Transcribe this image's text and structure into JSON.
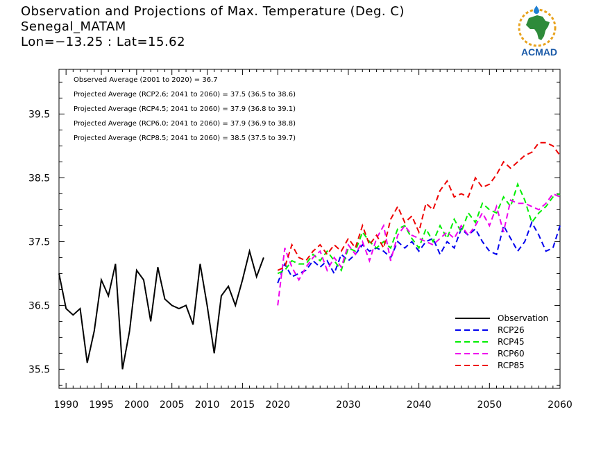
{
  "title": {
    "line1": "Observation and Projections of Max. Temperature (Deg. C)",
    "line2": "Senegal_MATAM",
    "line3": "Lon=−13.25 : Lat=15.62"
  },
  "logo": {
    "text": "ACMAD",
    "colors": {
      "africa": "#2e8b3a",
      "ring": "#e8a21c",
      "drop": "#1f7fd1",
      "text": "#1a5aa8"
    }
  },
  "chart_data": {
    "type": "line",
    "xlim": [
      1989,
      2060
    ],
    "ylim": [
      35.2,
      40.2
    ],
    "x_ticks": [
      1990,
      1995,
      2000,
      2005,
      2010,
      2015,
      2020,
      2030,
      2040,
      2050,
      2060
    ],
    "y_ticks": [
      35.5,
      36.5,
      37.5,
      38.5,
      39.5
    ],
    "annotations": [
      "Observed Average (2001 to 2020) = 36.7",
      "Projected Average (RCP2.6; 2041 to 2060) = 37.5 (36.5 to 38.6)",
      "Projected Average (RCP4.5; 2041 to 2060) = 37.9 (36.8 to 39.1)",
      "Projected Average (RCP6.0; 2041 to 2060) = 37.9 (36.9 to 38.8)",
      "Projected Average (RCP8.5; 2041 to 2060) = 38.5 (37.5 to 39.7)"
    ],
    "legend_position": "bottom-right",
    "series": [
      {
        "name": "Observation",
        "color": "#000000",
        "dash": "",
        "x": [
          1989,
          1990,
          1991,
          1992,
          1993,
          1994,
          1995,
          1996,
          1997,
          1998,
          1999,
          2000,
          2001,
          2002,
          2003,
          2004,
          2005,
          2006,
          2007,
          2008,
          2009,
          2010,
          2011,
          2012,
          2013,
          2014,
          2015,
          2016,
          2017,
          2018,
          2019,
          2020
        ],
        "y": [
          37.0,
          36.45,
          36.35,
          36.45,
          35.6,
          36.1,
          36.9,
          36.65,
          37.15,
          35.5,
          36.1,
          37.05,
          36.9,
          36.25,
          37.1,
          36.6,
          36.5,
          36.45,
          36.5,
          36.2,
          37.15,
          36.5,
          35.75,
          36.65,
          36.8,
          36.5,
          36.9,
          37.35,
          36.95,
          37.25,
          null,
          null
        ]
      },
      {
        "name": "RCP26",
        "color": "#0000ee",
        "dash": "8,5",
        "x": [
          2020,
          2021,
          2022,
          2023,
          2024,
          2025,
          2026,
          2027,
          2028,
          2029,
          2030,
          2031,
          2032,
          2033,
          2034,
          2035,
          2036,
          2037,
          2038,
          2039,
          2040,
          2041,
          2042,
          2043,
          2044,
          2045,
          2046,
          2047,
          2048,
          2049,
          2050,
          2051,
          2052,
          2053,
          2054,
          2055,
          2056,
          2057,
          2058,
          2059,
          2060
        ],
        "y": [
          36.85,
          37.15,
          36.95,
          37.0,
          37.05,
          37.2,
          37.1,
          37.2,
          37.0,
          37.3,
          37.2,
          37.3,
          37.45,
          37.35,
          37.4,
          37.35,
          37.25,
          37.5,
          37.4,
          37.5,
          37.35,
          37.5,
          37.55,
          37.3,
          37.5,
          37.4,
          37.7,
          37.6,
          37.7,
          37.5,
          37.35,
          37.3,
          37.75,
          37.55,
          37.35,
          37.5,
          37.8,
          37.6,
          37.35,
          37.4,
          37.75
        ]
      },
      {
        "name": "RCP45",
        "color": "#00ee00",
        "dash": "8,5",
        "x": [
          2020,
          2021,
          2022,
          2023,
          2024,
          2025,
          2026,
          2027,
          2028,
          2029,
          2030,
          2031,
          2032,
          2033,
          2034,
          2035,
          2036,
          2037,
          2038,
          2039,
          2040,
          2041,
          2042,
          2043,
          2044,
          2045,
          2046,
          2047,
          2048,
          2049,
          2050,
          2051,
          2052,
          2053,
          2054,
          2055,
          2056,
          2057,
          2058,
          2059,
          2060
        ],
        "y": [
          37.0,
          37.05,
          37.2,
          37.15,
          37.15,
          37.3,
          37.2,
          37.35,
          37.2,
          37.05,
          37.4,
          37.35,
          37.65,
          37.5,
          37.4,
          37.5,
          37.4,
          37.7,
          37.75,
          37.55,
          37.4,
          37.7,
          37.5,
          37.75,
          37.55,
          37.85,
          37.65,
          37.95,
          37.8,
          38.1,
          38.0,
          37.95,
          38.2,
          38.05,
          38.4,
          38.15,
          37.8,
          37.95,
          38.05,
          38.2,
          38.25
        ]
      },
      {
        "name": "RCP60",
        "color": "#ee00ee",
        "dash": "8,5",
        "x": [
          2020,
          2021,
          2022,
          2023,
          2024,
          2025,
          2026,
          2027,
          2028,
          2029,
          2030,
          2031,
          2032,
          2033,
          2034,
          2035,
          2036,
          2037,
          2038,
          2039,
          2040,
          2041,
          2042,
          2043,
          2044,
          2045,
          2046,
          2047,
          2048,
          2049,
          2050,
          2051,
          2052,
          2053,
          2054,
          2055,
          2056,
          2057,
          2058,
          2059,
          2060
        ],
        "y": [
          36.5,
          37.4,
          37.1,
          36.9,
          37.1,
          37.25,
          37.35,
          37.05,
          37.25,
          37.1,
          37.45,
          37.3,
          37.5,
          37.2,
          37.55,
          37.75,
          37.2,
          37.6,
          37.75,
          37.6,
          37.55,
          37.5,
          37.45,
          37.55,
          37.65,
          37.55,
          37.75,
          37.6,
          37.75,
          37.95,
          37.75,
          38.05,
          37.65,
          38.15,
          38.1,
          38.1,
          38.05,
          38.0,
          38.1,
          38.25,
          38.2
        ]
      },
      {
        "name": "RCP85",
        "color": "#ee0000",
        "dash": "8,5",
        "x": [
          2020,
          2021,
          2022,
          2023,
          2024,
          2025,
          2026,
          2027,
          2028,
          2029,
          2030,
          2031,
          2032,
          2033,
          2034,
          2035,
          2036,
          2037,
          2038,
          2039,
          2040,
          2041,
          2042,
          2043,
          2044,
          2045,
          2046,
          2047,
          2048,
          2049,
          2050,
          2051,
          2052,
          2053,
          2054,
          2055,
          2056,
          2057,
          2058,
          2059,
          2060
        ],
        "y": [
          37.05,
          37.1,
          37.45,
          37.25,
          37.2,
          37.35,
          37.45,
          37.3,
          37.45,
          37.35,
          37.55,
          37.4,
          37.75,
          37.45,
          37.6,
          37.4,
          37.85,
          38.05,
          37.8,
          37.9,
          37.65,
          38.1,
          38.0,
          38.3,
          38.45,
          38.2,
          38.25,
          38.2,
          38.5,
          38.35,
          38.4,
          38.55,
          38.75,
          38.65,
          38.75,
          38.85,
          38.9,
          39.05,
          39.05,
          39.0,
          38.85
        ]
      }
    ]
  }
}
